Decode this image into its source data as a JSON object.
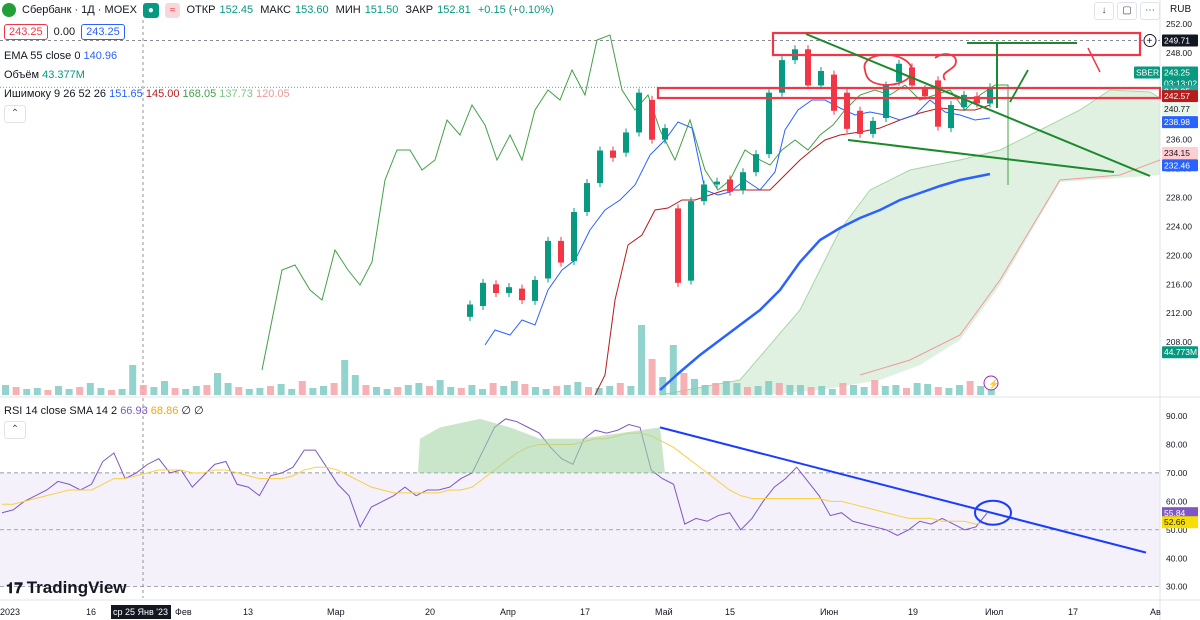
{
  "header": {
    "symbol": "Сбербанк · 1Д · MOEX",
    "open_label": "ОТКР",
    "open": "152.45",
    "high_label": "МАКС",
    "high": "153.60",
    "low_label": "МИН",
    "low": "151.50",
    "close_label": "ЗАКР",
    "close": "152.81",
    "change": "+0.15 (+0.10%)",
    "sell_price": "243.25",
    "spread": "0.00",
    "buy_price": "243.25",
    "currency": "RUB"
  },
  "indicators": {
    "ema": "EMA 55 close 0",
    "ema_val": "140.96",
    "volume": "Объём",
    "volume_val": "43.377M",
    "ichimoku": "Ишимоку 9 26 52 26",
    "ichimoku_vals": [
      "151.65",
      "145.00",
      "168.05",
      "137.73",
      "120.05"
    ],
    "rsi": "RSI 14 close SMA 14 2",
    "rsi_vals": [
      "66.93",
      "68.86",
      "∅",
      "∅"
    ]
  },
  "logo": "TradingView",
  "colors": {
    "up": "#089981",
    "down": "#f23645",
    "ema": "#2962ff",
    "lead_a": "#43a047",
    "lead_b": "#f7a600"
  },
  "chart_data": [
    {
      "type": "candlestick",
      "title": "Сбербанк · 1Д · MOEX",
      "ylim": [
        206,
        252
      ],
      "y_ticks": [
        "252.00",
        "248.00",
        "244.00",
        "240.00",
        "236.00",
        "232.00",
        "228.00",
        "224.00",
        "220.00",
        "216.00",
        "212.00",
        "208.00"
      ],
      "x_ticks": [
        "2023",
        "16",
        "ср 25 Янв '23",
        "Фев",
        "13",
        "Мар",
        "20",
        "Апр",
        "17",
        "Май",
        "15",
        "Июн",
        "19",
        "Июл",
        "17",
        "Ав"
      ],
      "price_labels": [
        "249.71",
        "SBER",
        "243.25",
        "03:13:02",
        "243.25",
        "242.57",
        "240.77",
        "238.98",
        "234.15",
        "232.46",
        "44.773M"
      ],
      "candles": [
        {
          "date": "Mar 20",
          "open": 211.5,
          "close": 213.2
        },
        {
          "date": "Mar 23",
          "open": 213.0,
          "close": 216.2
        },
        {
          "date": "Mar 27",
          "open": 216.0,
          "close": 214.8
        },
        {
          "date": "Mar 30",
          "open": 214.8,
          "close": 215.6
        },
        {
          "date": "Apr 03",
          "open": 215.4,
          "close": 213.8
        },
        {
          "date": "Apr 06",
          "open": 213.7,
          "close": 216.6
        },
        {
          "date": "Apr 10",
          "open": 216.8,
          "close": 222.0
        },
        {
          "date": "Apr 13",
          "open": 222.0,
          "close": 219.0
        },
        {
          "date": "Apr 17",
          "open": 219.2,
          "close": 226.0
        },
        {
          "date": "Apr 20",
          "open": 226.0,
          "close": 230.0
        },
        {
          "date": "Apr 24",
          "open": 230.0,
          "close": 234.5
        },
        {
          "date": "Apr 27",
          "open": 234.5,
          "close": 233.5
        },
        {
          "date": "May 02",
          "open": 234.2,
          "close": 237.0
        },
        {
          "date": "May 05",
          "open": 237.0,
          "close": 242.5
        },
        {
          "date": "May 08",
          "open": 241.5,
          "close": 236.0
        },
        {
          "date": "May 11",
          "open": 236.0,
          "close": 237.6
        },
        {
          "date": "May 15",
          "open": 226.5,
          "close": 216.2
        },
        {
          "date": "May 18",
          "open": 216.5,
          "close": 227.5
        },
        {
          "date": "May 22",
          "open": 227.5,
          "close": 229.8
        },
        {
          "date": "May 25",
          "open": 229.8,
          "close": 230.2
        },
        {
          "date": "May 29",
          "open": 230.5,
          "close": 228.8
        },
        {
          "date": "Jun 01",
          "open": 229.0,
          "close": 231.5
        },
        {
          "date": "Jun 05",
          "open": 231.5,
          "close": 234.0
        },
        {
          "date": "Jun 08",
          "open": 234.0,
          "close": 242.5
        },
        {
          "date": "Jun 12",
          "open": 242.5,
          "close": 247.0
        },
        {
          "date": "Jun 15",
          "open": 247.0,
          "close": 248.5
        },
        {
          "date": "Jun 19",
          "open": 248.5,
          "close": 243.5
        },
        {
          "date": "Jun 22",
          "open": 243.5,
          "close": 245.5
        },
        {
          "date": "Jun 26",
          "open": 245.0,
          "close": 240.0
        },
        {
          "date": "Jun 29",
          "open": 242.5,
          "close": 237.5
        },
        {
          "date": "Jul 03",
          "open": 240.0,
          "close": 236.8
        },
        {
          "date": "Jul 06",
          "open": 236.8,
          "close": 238.6
        },
        {
          "date": "Jul 10",
          "open": 239.0,
          "close": 243.5
        },
        {
          "date": "Jul 13",
          "open": 244.0,
          "close": 246.5
        },
        {
          "date": "Jul 17",
          "open": 246.0,
          "close": 243.5
        },
        {
          "date": "Jul 20",
          "open": 243.0,
          "close": 242.0
        },
        {
          "date": "Jul 24",
          "open": 244.2,
          "close": 237.8
        },
        {
          "date": "Jul 27",
          "open": 237.6,
          "close": 240.8
        },
        {
          "date": "Jul 31",
          "open": 240.5,
          "close": 242.2
        },
        {
          "date": "Aug 03",
          "open": 242.0,
          "close": 241.0
        },
        {
          "date": "Aug 07",
          "open": 241.0,
          "close": 243.25
        }
      ]
    },
    {
      "type": "line",
      "title": "RSI 14 close SMA 14 2",
      "ylim": [
        28,
        95
      ],
      "y_ticks": [
        "90.00",
        "80.00",
        "70.00",
        "60.00",
        "50.00",
        "40.00",
        "30.00"
      ],
      "levels": [
        70,
        30,
        50
      ],
      "value_labels": [
        "55.84",
        "52.66"
      ],
      "series": [
        {
          "values": [
            56,
            57,
            60,
            62,
            64,
            67,
            66,
            64,
            66,
            74,
            77,
            68,
            70,
            73,
            75,
            70,
            71,
            65,
            69,
            73,
            74,
            66,
            65,
            62,
            69,
            70,
            72,
            78,
            78,
            72,
            66,
            62,
            51,
            58,
            60,
            62,
            65,
            62,
            64,
            64,
            65,
            68,
            70,
            78,
            86,
            89,
            88,
            86,
            84,
            79,
            75,
            73,
            82,
            85,
            84,
            85,
            87,
            86,
            71,
            68,
            66,
            52,
            54,
            53,
            55,
            56,
            50,
            54,
            60,
            65,
            68,
            72,
            67,
            62,
            55,
            56,
            53,
            52,
            51,
            50,
            48,
            50,
            53,
            52,
            54,
            52,
            50,
            51,
            55.84
          ]
        },
        {
          "values": [
            59,
            59,
            60,
            61,
            62,
            63,
            64,
            64,
            64,
            66,
            68,
            68,
            69,
            70,
            71,
            71,
            71,
            70,
            70,
            71,
            71,
            70,
            69,
            68,
            68,
            68,
            69,
            71,
            72,
            72,
            71,
            69,
            67,
            65,
            64,
            63,
            63,
            63,
            63,
            63,
            64,
            64,
            65,
            68,
            71,
            74,
            77,
            79,
            80,
            80,
            80,
            80,
            81,
            82,
            82,
            83,
            84,
            84,
            83,
            81,
            79,
            76,
            73,
            70,
            67,
            64,
            62,
            61,
            61,
            61,
            61,
            61,
            61,
            61,
            60,
            60,
            59,
            58,
            57,
            56,
            55,
            54,
            54,
            54,
            53,
            53,
            53,
            52,
            52.66
          ]
        }
      ]
    }
  ]
}
